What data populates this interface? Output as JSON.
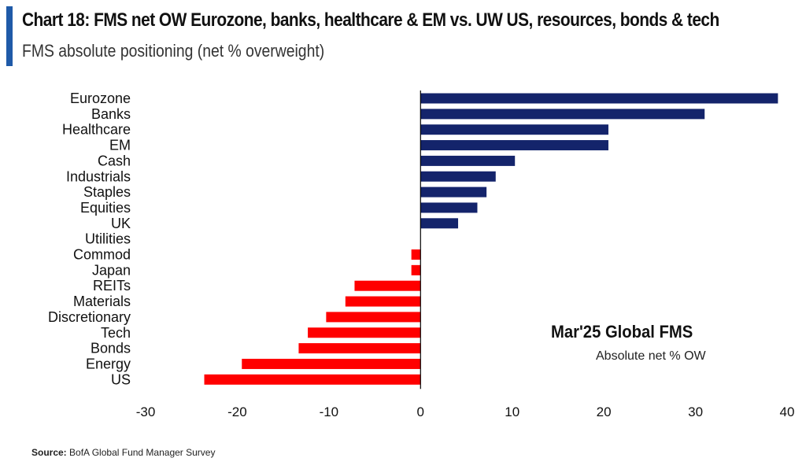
{
  "header": {
    "title": "Chart 18: FMS net OW Eurozone, banks, healthcare & EM vs. UW US, resources, bonds & tech",
    "subtitle": "FMS absolute positioning (net % overweight)"
  },
  "annotation": {
    "title": "Mar'25 Global FMS",
    "subtitle": "Absolute net % OW"
  },
  "source": {
    "label": "Source:",
    "text": "BofA Global Fund Manager Survey"
  },
  "colors": {
    "accent": "#1f5aa8",
    "positive": "#14246b",
    "negative": "#ff0000"
  },
  "chart_data": {
    "type": "bar",
    "orientation": "horizontal",
    "categories": [
      "Eurozone",
      "Banks",
      "Healthcare",
      "EM",
      "Cash",
      "Industrials",
      "Staples",
      "Equities",
      "UK",
      "Utilities",
      "Commod",
      "Japan",
      "REITs",
      "Materials",
      "Discretionary",
      "Tech",
      "Bonds",
      "Energy",
      "US"
    ],
    "values": [
      39,
      31,
      20.5,
      20.5,
      10.3,
      8.2,
      7.2,
      6.2,
      4.1,
      0,
      -1,
      -1,
      -7.2,
      -8.2,
      -10.3,
      -12.3,
      -13.3,
      -19.5,
      -23.6
    ],
    "xlim": [
      -30,
      40
    ],
    "xticks": [
      -30,
      -20,
      -10,
      0,
      10,
      20,
      30,
      40
    ],
    "xtick_labels": [
      "-30",
      "-20",
      "-10",
      "0",
      "10",
      "20",
      "30",
      "40"
    ],
    "grid": false,
    "legend": "none",
    "color_rule": "positive blue, negative red"
  }
}
